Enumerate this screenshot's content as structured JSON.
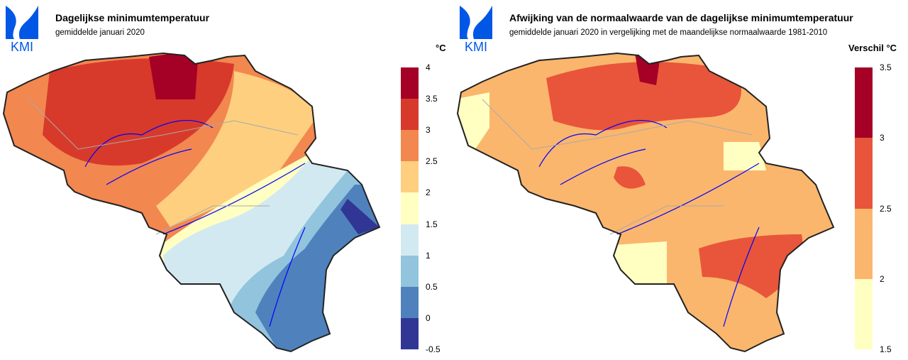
{
  "left": {
    "logo_text": "KMI",
    "title": "Dagelijkse minimumtemperatuur",
    "subtitle": "gemiddelde januari 2020",
    "unit": "°C",
    "legend": {
      "ticks": [
        "4",
        "3.5",
        "3",
        "2.5",
        "2",
        "1.5",
        "1",
        "0.5",
        "0",
        "-0.5"
      ],
      "colors": [
        "#a50026",
        "#d73a2b",
        "#f2874f",
        "#fdcf7f",
        "#ffffc2",
        "#d3e9f1",
        "#92c4de",
        "#4f82bd",
        "#313695"
      ]
    }
  },
  "right": {
    "logo_text": "KMI",
    "title": "Afwijking van de normaalwaarde van de dagelijkse minimumtemperatuur",
    "subtitle": "gemiddelde januari 2020 in vergelijking met de maandelijkse normaalwaarde 1981-2010",
    "unit": "Verschil °C",
    "legend": {
      "ticks": [
        "3.5",
        "3",
        "2.5",
        "2",
        "1.5"
      ],
      "colors": [
        "#a50026",
        "#e8553a",
        "#fbb66d",
        "#ffffc2"
      ]
    }
  },
  "colors": {
    "logo": "#0057e6",
    "border": "#222222",
    "rivers": "#0000ff",
    "provinces": "#aaaaaa"
  }
}
